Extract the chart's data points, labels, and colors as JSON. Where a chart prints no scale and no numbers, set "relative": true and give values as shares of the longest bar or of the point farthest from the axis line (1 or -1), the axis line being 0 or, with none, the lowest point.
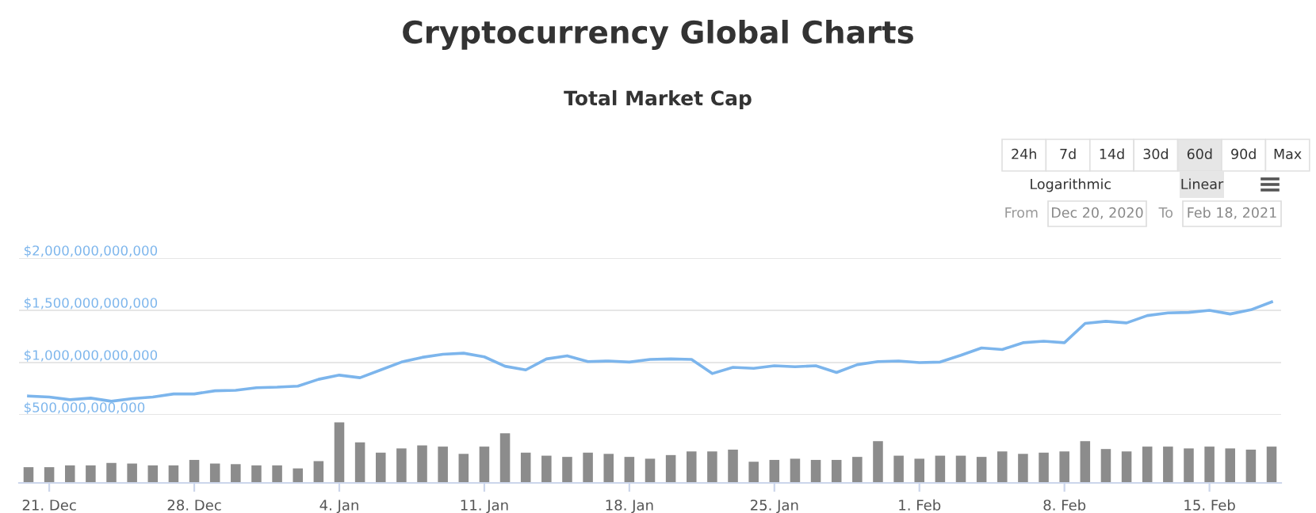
{
  "chart_data": [
    {
      "type": "line",
      "title": "Cryptocurrency Global Charts",
      "subtitle": "Total Market Cap",
      "annotations": [
        "24h",
        "7d",
        "14d",
        "30d",
        "60d",
        "90d",
        "Max",
        "Logarithmic",
        "Linear",
        "From",
        "Dec 20, 2020",
        "To",
        "Feb 18, 2021"
      ],
      "x": [
        "2020-12-20",
        "2020-12-21",
        "2020-12-22",
        "2020-12-23",
        "2020-12-24",
        "2020-12-25",
        "2020-12-26",
        "2020-12-27",
        "2020-12-28",
        "2020-12-29",
        "2020-12-30",
        "2020-12-31",
        "2021-01-01",
        "2021-01-02",
        "2021-01-03",
        "2021-01-04",
        "2021-01-05",
        "2021-01-06",
        "2021-01-07",
        "2021-01-08",
        "2021-01-09",
        "2021-01-10",
        "2021-01-11",
        "2021-01-12",
        "2021-01-13",
        "2021-01-14",
        "2021-01-15",
        "2021-01-16",
        "2021-01-17",
        "2021-01-18",
        "2021-01-19",
        "2021-01-20",
        "2021-01-21",
        "2021-01-22",
        "2021-01-23",
        "2021-01-24",
        "2021-01-25",
        "2021-01-26",
        "2021-01-27",
        "2021-01-28",
        "2021-01-29",
        "2021-01-30",
        "2021-01-31",
        "2021-02-01",
        "2021-02-02",
        "2021-02-03",
        "2021-02-04",
        "2021-02-05",
        "2021-02-06",
        "2021-02-07",
        "2021-02-08",
        "2021-02-09",
        "2021-02-10",
        "2021-02-11",
        "2021-02-12",
        "2021-02-13",
        "2021-02-14",
        "2021-02-15",
        "2021-02-16",
        "2021-02-17",
        "2021-02-18"
      ],
      "series": [
        {
          "color": "#7cb5ec",
          "values": [
            680000000000,
            670000000000,
            645000000000,
            660000000000,
            630000000000,
            655000000000,
            670000000000,
            700000000000,
            700000000000,
            730000000000,
            735000000000,
            760000000000,
            765000000000,
            775000000000,
            840000000000,
            880000000000,
            855000000000,
            930000000000,
            1005000000000,
            1050000000000,
            1080000000000,
            1090000000000,
            1055000000000,
            965000000000,
            930000000000,
            1035000000000,
            1065000000000,
            1010000000000,
            1015000000000,
            1005000000000,
            1030000000000,
            1035000000000,
            1030000000000,
            895000000000,
            955000000000,
            945000000000,
            970000000000,
            960000000000,
            970000000000,
            905000000000,
            980000000000,
            1010000000000,
            1015000000000,
            1000000000000,
            1005000000000,
            1070000000000,
            1140000000000,
            1125000000000,
            1190000000000,
            1205000000000,
            1190000000000,
            1375000000000,
            1395000000000,
            1380000000000,
            1450000000000,
            1475000000000,
            1480000000000,
            1500000000000,
            1465000000000,
            1505000000000,
            1580000000000
          ]
        }
      ],
      "xlim": [
        "2020-12-19T13:00",
        "2021-02-18T11:00"
      ],
      "ylim": [
        500000000000,
        2000000000000
      ],
      "yticks": [
        {
          "value": 500000000000,
          "label": "$500,000,000,000"
        },
        {
          "value": 1000000000000,
          "label": "$1,000,000,000,000"
        },
        {
          "value": 1500000000000,
          "label": "$1,500,000,000,000"
        },
        {
          "value": 2000000000000,
          "label": "$2,000,000,000,000"
        }
      ],
      "grid": "y",
      "tick_labels": "y",
      "line_style": "solid"
    },
    {
      "type": "bar",
      "relative": true,
      "grid": false,
      "tick_labels": "x",
      "x": [
        "2020-12-20",
        "2020-12-21",
        "2020-12-22",
        "2020-12-23",
        "2020-12-24",
        "2020-12-25",
        "2020-12-26",
        "2020-12-27",
        "2020-12-28",
        "2020-12-29",
        "2020-12-30",
        "2020-12-31",
        "2021-01-01",
        "2021-01-02",
        "2021-01-03",
        "2021-01-04",
        "2021-01-05",
        "2021-01-06",
        "2021-01-07",
        "2021-01-08",
        "2021-01-09",
        "2021-01-10",
        "2021-01-11",
        "2021-01-12",
        "2021-01-13",
        "2021-01-14",
        "2021-01-15",
        "2021-01-16",
        "2021-01-17",
        "2021-01-18",
        "2021-01-19",
        "2021-01-20",
        "2021-01-21",
        "2021-01-22",
        "2021-01-23",
        "2021-01-24",
        "2021-01-25",
        "2021-01-26",
        "2021-01-27",
        "2021-01-28",
        "2021-01-29",
        "2021-01-30",
        "2021-01-31",
        "2021-02-01",
        "2021-02-02",
        "2021-02-03",
        "2021-02-04",
        "2021-02-05",
        "2021-02-06",
        "2021-02-07",
        "2021-02-08",
        "2021-02-09",
        "2021-02-10",
        "2021-02-11",
        "2021-02-12",
        "2021-02-13",
        "2021-02-14",
        "2021-02-15",
        "2021-02-16",
        "2021-02-17",
        "2021-02-18"
      ],
      "series": [
        {
          "color": "#8c8c8c",
          "values": [
            0.26,
            0.26,
            0.29,
            0.29,
            0.33,
            0.32,
            0.29,
            0.29,
            0.38,
            0.32,
            0.31,
            0.29,
            0.29,
            0.24,
            0.36,
            1,
            0.67,
            0.5,
            0.57,
            0.62,
            0.6,
            0.48,
            0.6,
            0.82,
            0.5,
            0.45,
            0.43,
            0.5,
            0.48,
            0.43,
            0.4,
            0.46,
            0.52,
            0.52,
            0.55,
            0.35,
            0.38,
            0.4,
            0.38,
            0.38,
            0.43,
            0.69,
            0.45,
            0.4,
            0.45,
            0.45,
            0.43,
            0.52,
            0.48,
            0.5,
            0.52,
            0.69,
            0.56,
            0.52,
            0.6,
            0.6,
            0.57,
            0.6,
            0.57,
            0.55,
            0.6
          ]
        }
      ],
      "xlim": [
        "2020-12-19T13:00",
        "2021-02-18T11:00"
      ],
      "xticks": [
        {
          "value": "2020-12-21",
          "label": "21. Dec"
        },
        {
          "value": "2020-12-28",
          "label": "28. Dec"
        },
        {
          "value": "2021-01-04",
          "label": "4. Jan"
        },
        {
          "value": "2021-01-11",
          "label": "11. Jan"
        },
        {
          "value": "2021-01-18",
          "label": "18. Jan"
        },
        {
          "value": "2021-01-25",
          "label": "25. Jan"
        },
        {
          "value": "2021-02-01",
          "label": "1. Feb"
        },
        {
          "value": "2021-02-08",
          "label": "8. Feb"
        },
        {
          "value": "2021-02-15",
          "label": "15. Feb"
        }
      ]
    }
  ]
}
